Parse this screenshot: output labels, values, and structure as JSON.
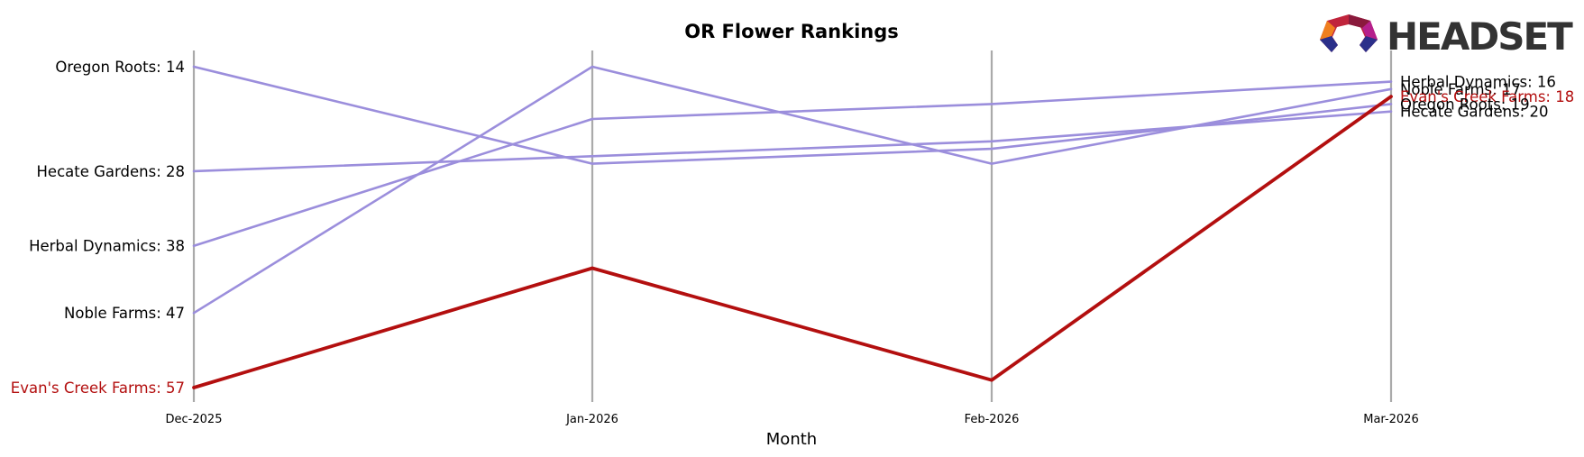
{
  "chart_data": {
    "type": "line",
    "title": "OR Flower Rankings",
    "xlabel": "Month",
    "ylabel": "",
    "x": [
      "Dec-2025",
      "Jan-2026",
      "Feb-2026",
      "Mar-2026"
    ],
    "y_inverted": true,
    "ylim": [
      57,
      14
    ],
    "grid": "vertical lines at each month",
    "legend": "none (series labelled at line ends)",
    "series": [
      {
        "name": "Oregon Roots",
        "values": [
          14,
          27,
          25,
          19
        ],
        "color": "#9b8edc"
      },
      {
        "name": "Hecate Gardens",
        "values": [
          28,
          26,
          24,
          20
        ],
        "color": "#9b8edc"
      },
      {
        "name": "Herbal Dynamics",
        "values": [
          38,
          21,
          19,
          16
        ],
        "color": "#9b8edc"
      },
      {
        "name": "Noble Farms",
        "values": [
          47,
          14,
          27,
          17
        ],
        "color": "#9b8edc"
      },
      {
        "name": "Evan's Creek Farms",
        "values": [
          57,
          41,
          56,
          18
        ],
        "color": "#b30f0f",
        "highlight": true
      }
    ],
    "start_labels": [
      "Oregon Roots: 14",
      "Hecate Gardens: 28",
      "Herbal Dynamics: 38",
      "Noble Farms: 47",
      "Evan's Creek Farms: 57"
    ],
    "end_labels": [
      "Herbal Dynamics: 16",
      "Noble Farms: 17",
      "Evan's Creek Farms: 18",
      "Oregon Roots: 19",
      "Hecate Gardens: 20"
    ]
  },
  "logo": {
    "text": "HEADSET"
  },
  "colors": {
    "highlight": "#b30f0f",
    "other": "#9b8edc",
    "gridline": "#aaaaaa"
  }
}
